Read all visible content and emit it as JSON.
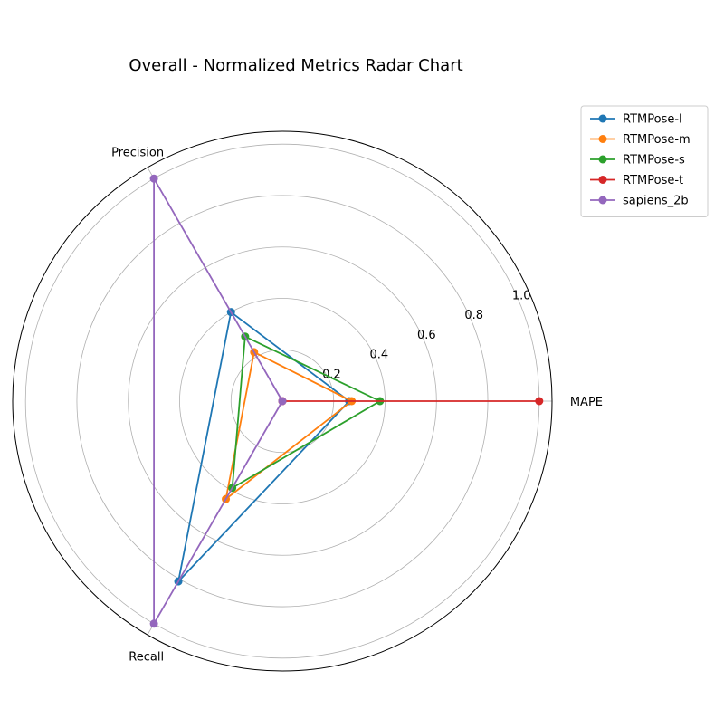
{
  "chart_data": {
    "type": "radar",
    "title": "Overall - Normalized Metrics Radar Chart",
    "axes": [
      "MAPE",
      "Precision",
      "Recall"
    ],
    "rlim": [
      0,
      1.05
    ],
    "rticks": [
      0.2,
      0.4,
      0.6,
      0.8,
      1.0
    ],
    "rtick_labels": [
      "0.2",
      "0.4",
      "0.6",
      "0.8",
      "1.0"
    ],
    "grid": true,
    "legend_position": "upper right, outside plot",
    "series": [
      {
        "name": "RTMPose-l",
        "color": "#1f77b4",
        "values": [
          0.26,
          0.4,
          0.81
        ]
      },
      {
        "name": "RTMPose-m",
        "color": "#ff7f0e",
        "values": [
          0.27,
          0.22,
          0.44
        ]
      },
      {
        "name": "RTMPose-s",
        "color": "#2ca02c",
        "values": [
          0.38,
          0.29,
          0.39
        ]
      },
      {
        "name": "RTMPose-t",
        "color": "#d62728",
        "values": [
          1.0,
          0.0,
          0.0
        ]
      },
      {
        "name": "sapiens_2b",
        "color": "#9467bd",
        "values": [
          0.0,
          1.0,
          1.0
        ]
      }
    ]
  }
}
